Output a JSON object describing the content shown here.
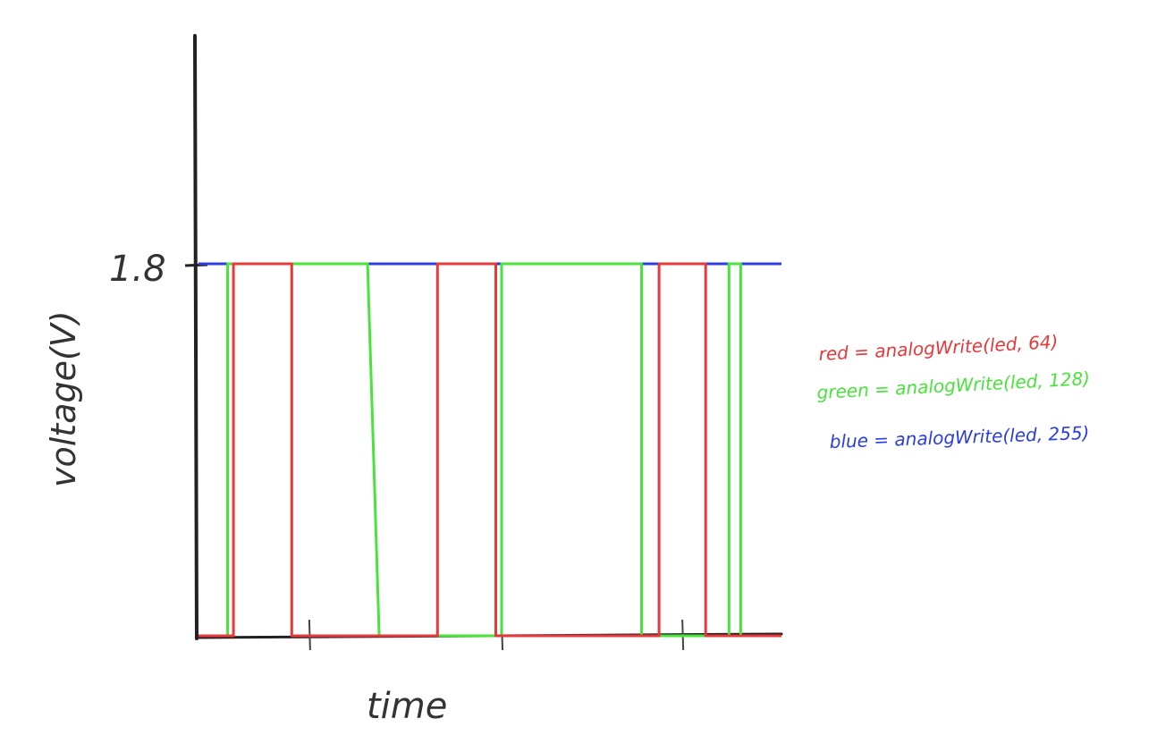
{
  "chart_data": {
    "type": "line",
    "title": "",
    "xlabel": "time",
    "ylabel": "voltage(V)",
    "y_ticks": [
      "1.8"
    ],
    "ylim": [
      0,
      1.8
    ],
    "x_ticks_marked": 3,
    "series": [
      {
        "name": "red = analogWrite(led, 64)",
        "color": "#e8383a",
        "points": [
          [
            0,
            0
          ],
          [
            0.06,
            0
          ],
          [
            0.06,
            1.8
          ],
          [
            0.16,
            1.8
          ],
          [
            0.16,
            0
          ],
          [
            0.41,
            0
          ],
          [
            0.41,
            1.8
          ],
          [
            0.51,
            1.8
          ],
          [
            0.51,
            0
          ],
          [
            0.79,
            0
          ],
          [
            0.79,
            1.8
          ],
          [
            0.87,
            1.8
          ],
          [
            0.87,
            0
          ],
          [
            1.0,
            0
          ]
        ]
      },
      {
        "name": "green = analogWrite(led, 128)",
        "color": "#49e33b",
        "points": [
          [
            0,
            0
          ],
          [
            0.05,
            0
          ],
          [
            0.05,
            1.8
          ],
          [
            0.29,
            1.8
          ],
          [
            0.31,
            0
          ],
          [
            0.52,
            0
          ],
          [
            0.52,
            1.8
          ],
          [
            0.76,
            1.8
          ],
          [
            0.76,
            0
          ],
          [
            0.91,
            0
          ],
          [
            0.91,
            1.8
          ],
          [
            0.93,
            1.8
          ],
          [
            0.93,
            0
          ],
          [
            1.0,
            0
          ]
        ]
      },
      {
        "name": "blue = analogWrite(led, 255)",
        "color": "#2b3de0",
        "points": [
          [
            0,
            1.8
          ],
          [
            1.0,
            1.8
          ]
        ]
      }
    ],
    "x_ticks_at": [
      0.19,
      0.52,
      0.83
    ]
  }
}
